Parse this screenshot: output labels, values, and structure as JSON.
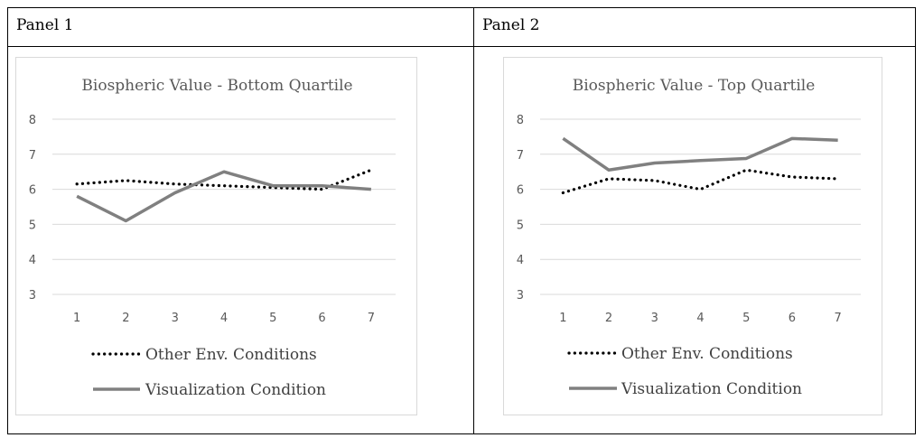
{
  "panels": [
    {
      "label": "Panel 1",
      "chart_data": {
        "type": "line",
        "title": "Biospheric Value - Bottom Quartile",
        "xlabel": "",
        "ylabel": "",
        "x": [
          1,
          2,
          3,
          4,
          5,
          6,
          7
        ],
        "ylim": [
          3,
          8
        ],
        "yticks": [
          3,
          4,
          5,
          6,
          7,
          8
        ],
        "grid": true,
        "legend_position": "bottom",
        "series": [
          {
            "name": "Other Env. Conditions",
            "style": "dotted",
            "color": "#000000",
            "values": [
              6.15,
              6.25,
              6.15,
              6.1,
              6.05,
              6.0,
              6.55
            ]
          },
          {
            "name": "Visualization Condition",
            "style": "solid",
            "color": "#808080",
            "values": [
              5.8,
              5.1,
              5.9,
              6.5,
              6.1,
              6.1,
              6.0
            ]
          }
        ]
      }
    },
    {
      "label": "Panel 2",
      "chart_data": {
        "type": "line",
        "title": "Biospheric Value - Top Quartile",
        "xlabel": "",
        "ylabel": "",
        "x": [
          1,
          2,
          3,
          4,
          5,
          6,
          7
        ],
        "ylim": [
          3,
          8
        ],
        "yticks": [
          3,
          4,
          5,
          6,
          7,
          8
        ],
        "grid": true,
        "legend_position": "bottom",
        "series": [
          {
            "name": "Other Env. Conditions",
            "style": "dotted",
            "color": "#000000",
            "values": [
              5.9,
              6.3,
              6.25,
              6.0,
              6.55,
              6.35,
              6.3
            ]
          },
          {
            "name": "Visualization Condition",
            "style": "solid",
            "color": "#808080",
            "values": [
              7.45,
              6.55,
              6.75,
              6.82,
              6.88,
              7.45,
              7.4
            ]
          }
        ]
      }
    }
  ]
}
